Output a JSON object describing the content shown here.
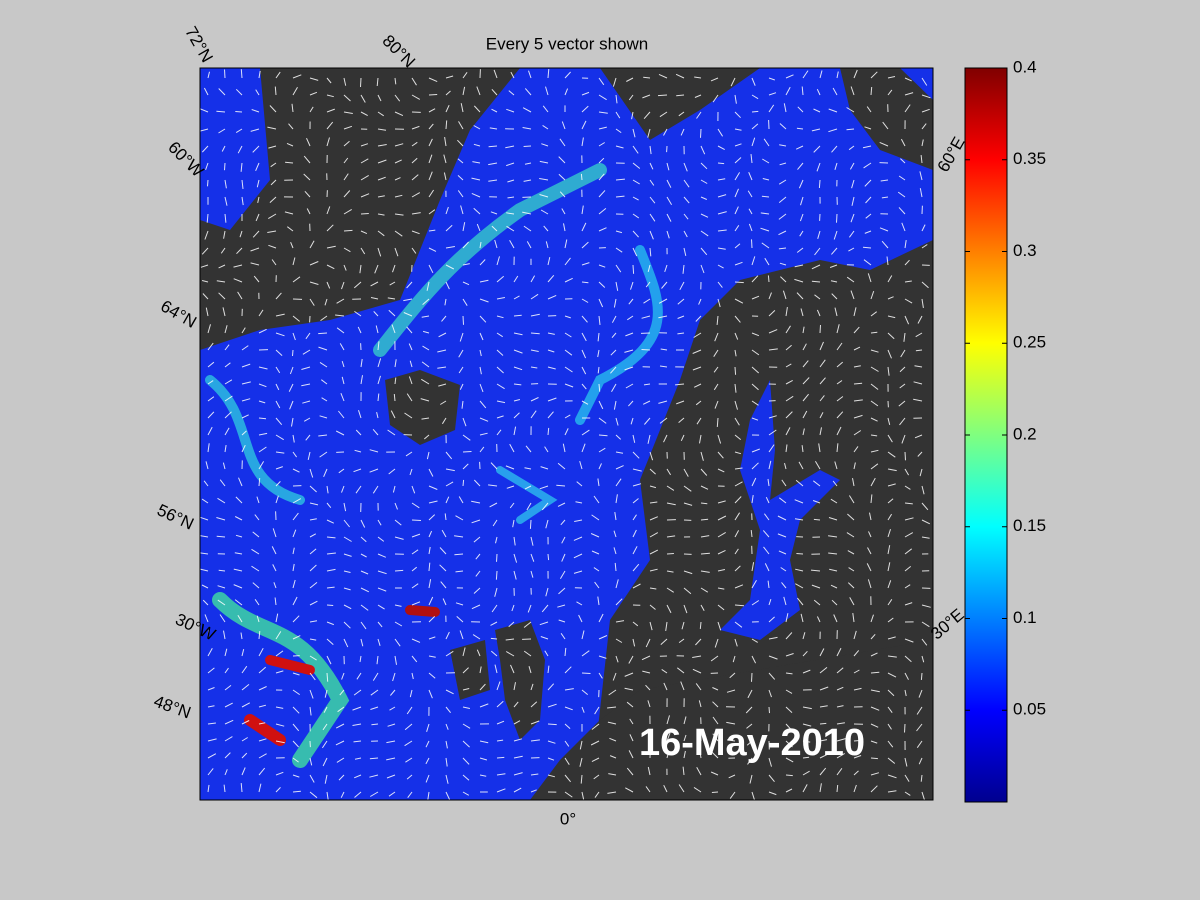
{
  "title": "Every 5 vector shown",
  "date_label": "16-May-2010",
  "map": {
    "lat_labels": [
      "72°N",
      "80°N",
      "64°N",
      "56°N",
      "48°N"
    ],
    "lon_labels": [
      "60°W",
      "30°W",
      "0°",
      "30°E",
      "60°E"
    ]
  },
  "colorbar": {
    "lim": [
      0,
      0.4
    ],
    "ticks": [
      0.05,
      0.1,
      0.15,
      0.2,
      0.25,
      0.3,
      0.35,
      0.4
    ],
    "colormap": "jet"
  }
}
